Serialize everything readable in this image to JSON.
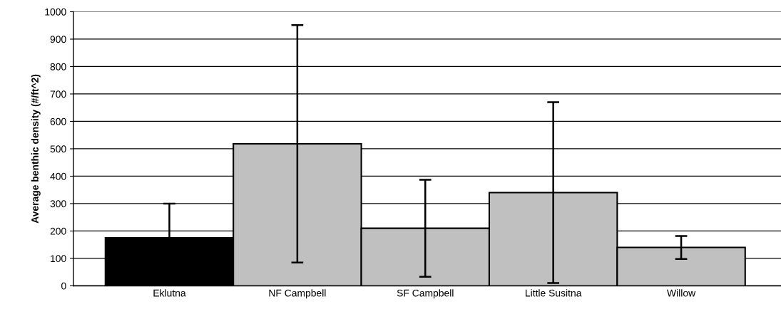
{
  "chart_data": {
    "type": "bar",
    "ylabel": "Average benthic density (#/ft^2)",
    "categories": [
      "Eklutna",
      "NF Campbell",
      "SF Campbell",
      "Little Susitna",
      "Willow"
    ],
    "values": [
      175,
      518,
      210,
      340,
      140
    ],
    "errors": [
      125,
      433,
      177,
      330,
      42
    ],
    "colors": [
      "#000000",
      "#c0c0c0",
      "#c0c0c0",
      "#c0c0c0",
      "#c0c0c0"
    ],
    "ylim": [
      0,
      1000
    ],
    "yticks": [
      0,
      100,
      200,
      300,
      400,
      500,
      600,
      700,
      800,
      900,
      1000
    ],
    "grid": "y"
  }
}
